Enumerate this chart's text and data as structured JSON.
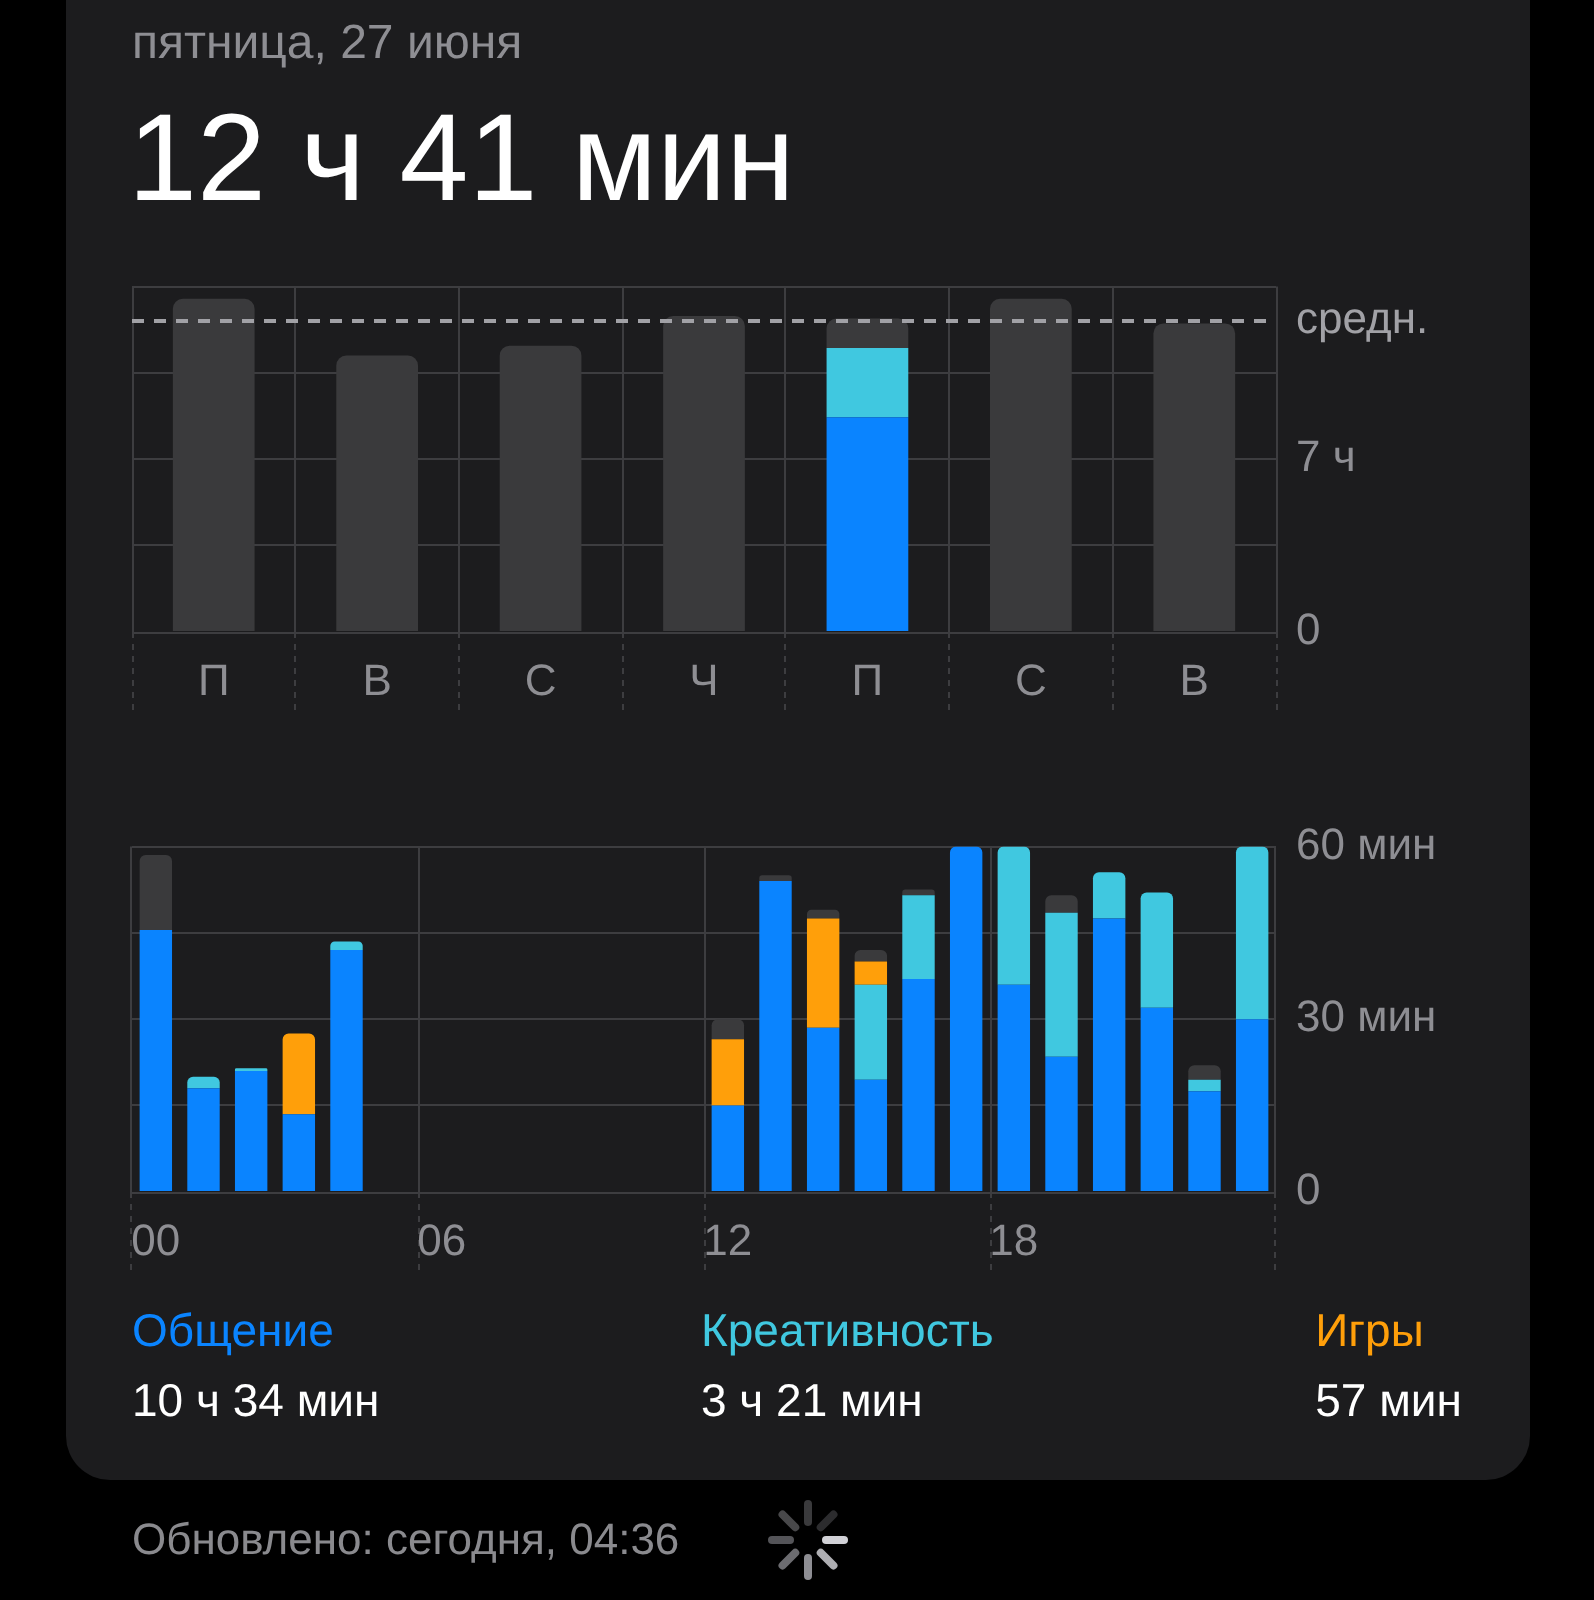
{
  "chart_data": [
    {
      "type": "bar",
      "title": "пятница, 27 июня",
      "subtitle": "12 ч 41 мин",
      "categories": [
        "П",
        "В",
        "С",
        "Ч",
        "П",
        "С",
        "В"
      ],
      "stacked": true,
      "series": [
        {
          "color": "#0a84ff",
          "values": [
            null,
            null,
            null,
            null,
            8.7,
            null,
            null
          ]
        },
        {
          "color": "#40c8e0",
          "values": [
            null,
            null,
            null,
            null,
            2.8,
            null,
            null
          ]
        },
        {
          "color": "#3a3a3c",
          "values": [
            13.5,
            11.2,
            11.6,
            12.8,
            1.2,
            13.5,
            12.5
          ]
        }
      ],
      "ylim": [
        0,
        14
      ],
      "yticks": [
        {
          "value": 0,
          "label": "0"
        },
        {
          "value": 3.5,
          "label": null
        },
        {
          "value": 7,
          "label": "7 ч"
        },
        {
          "value": 10.5,
          "label": null
        },
        {
          "value": 14,
          "label": null
        }
      ],
      "ref_lines": [
        {
          "axis": "y",
          "value": 12.6,
          "label": "средн.",
          "color": "#a1a1a6",
          "line_style": "dashed"
        }
      ],
      "grid": true
    },
    {
      "type": "bar",
      "categories": [
        "00",
        null,
        null,
        null,
        null,
        null,
        "06",
        null,
        null,
        null,
        null,
        null,
        "12",
        null,
        null,
        null,
        null,
        null,
        "18",
        null,
        null,
        null,
        null,
        null
      ],
      "stacked": true,
      "series": [
        {
          "name": "Общение",
          "color": "#0a84ff",
          "values": [
            45.5,
            18,
            21,
            13.5,
            42,
            null,
            null,
            null,
            null,
            null,
            null,
            null,
            15,
            54,
            28.5,
            19.5,
            37,
            60,
            36,
            23.5,
            47.5,
            32,
            17.5,
            30
          ]
        },
        {
          "name": "Креативность",
          "color": "#40c8e0",
          "values": [
            null,
            2,
            0.5,
            null,
            1.5,
            null,
            null,
            null,
            null,
            null,
            null,
            null,
            null,
            null,
            null,
            16.5,
            14.5,
            null,
            24,
            25,
            8,
            20,
            2,
            30
          ]
        },
        {
          "name": "Игры",
          "color": "#ff9f0a",
          "values": [
            null,
            null,
            null,
            14,
            null,
            null,
            null,
            null,
            null,
            null,
            null,
            null,
            11.5,
            null,
            19,
            4,
            null,
            null,
            null,
            null,
            null,
            null,
            null,
            null
          ]
        },
        {
          "color": "#3a3a3c",
          "values": [
            13,
            null,
            null,
            null,
            null,
            null,
            null,
            null,
            null,
            null,
            null,
            null,
            3.5,
            1,
            1.5,
            2,
            1,
            null,
            null,
            3,
            null,
            null,
            2.5,
            null
          ]
        }
      ],
      "ylim": [
        0,
        60
      ],
      "yticks": [
        {
          "value": 0,
          "label": "0"
        },
        {
          "value": 15,
          "label": null
        },
        {
          "value": 30,
          "label": "30 мин"
        },
        {
          "value": 45,
          "label": null
        },
        {
          "value": 60,
          "label": "60 мин"
        }
      ],
      "grid": true,
      "legend": "bottom",
      "annotations": [
        "10 ч 34 мин",
        "3 ч 21 мин",
        "57 мин",
        "Обновлено: сегодня, 04:36"
      ]
    }
  ]
}
